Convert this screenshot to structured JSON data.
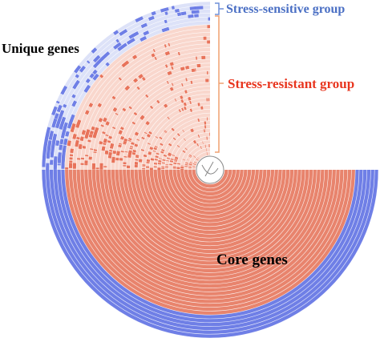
{
  "labels": {
    "sensitive_group": "Stress-sensitive group",
    "resistant_group": "Stress-resistant group",
    "unique_genes": "Unique genes",
    "core_genes": "Core genes"
  },
  "colors": {
    "sensitive": "#6f7fe6",
    "sensitive_light": "#dde2f8",
    "resistant": "#e8735a",
    "resistant_light": "#f9d7cd",
    "core": "#e8846d",
    "ring_line": "#ffffff",
    "sensitive_label": "#4a6fc4",
    "resistant_label": "#e8361f",
    "bracket_sensitive": "#6f8fd8",
    "bracket_resistant": "#f0a070",
    "text_dark": "#000000",
    "center_line": "#888888"
  },
  "structure": {
    "total_rings": 40,
    "sensitive_outer_rings": 6,
    "core_angle_fraction": 0.25,
    "core_angle_degrees": 90
  }
}
